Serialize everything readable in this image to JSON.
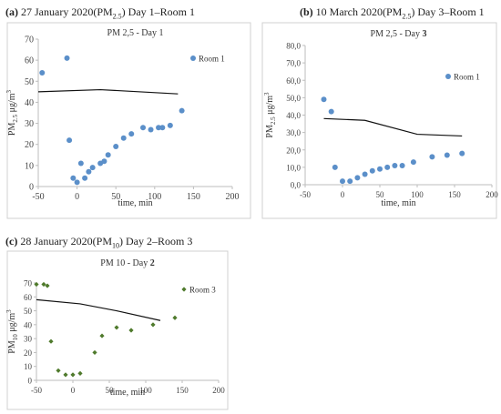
{
  "chart_data": [
    {
      "id": "a",
      "type": "scatter",
      "caption_letter": "(a)",
      "caption_text": " 27 January 2020(PM",
      "caption_sub": "2.5",
      "caption_tail": ") Day 1–Room 1",
      "title": "PM 2,5 - Day 1",
      "title_bold": "",
      "ylabel_main": "PM",
      "ylabel_sub": "2.5",
      "ylabel_unit": " μg/m",
      "ylabel_sup": "3",
      "xlabel": "time, min",
      "xlim": [
        -50,
        200
      ],
      "ylim": [
        0,
        70
      ],
      "xticks": [
        "-50",
        "0",
        "50",
        "100",
        "150",
        "200"
      ],
      "xtick_values": [
        -50,
        0,
        50,
        100,
        150,
        200
      ],
      "yticks": [
        "0",
        "10",
        "20",
        "30",
        "40",
        "50",
        "60",
        "70"
      ],
      "ytick_values": [
        0,
        10,
        20,
        30,
        40,
        50,
        60,
        70
      ],
      "grid": false,
      "legend": "top-right",
      "marker": "circle",
      "color": "#5b8fc9",
      "series": [
        {
          "name": "Room 1",
          "x": [
            -45,
            -13,
            -10,
            -5,
            0,
            5,
            10,
            15,
            20,
            30,
            35,
            40,
            50,
            60,
            70,
            85,
            95,
            105,
            110,
            120,
            135
          ],
          "y": [
            54,
            61,
            22,
            4,
            2,
            11,
            4,
            7,
            9,
            11,
            12,
            15,
            19,
            23,
            25,
            28,
            27,
            28,
            28,
            29,
            36
          ]
        }
      ],
      "line": {
        "x": [
          -50,
          30,
          130
        ],
        "y": [
          45,
          46,
          44
        ]
      }
    },
    {
      "id": "b",
      "type": "scatter",
      "caption_letter": "(b)",
      "caption_text": " 10 March 2020(PM",
      "caption_sub": "2.5",
      "caption_tail": ") Day 3–Room 1",
      "title": "PM 2,5 - Day ",
      "title_bold": "3",
      "ylabel_main": "PM",
      "ylabel_sub": "2.5",
      "ylabel_unit": " μg/m",
      "ylabel_sup": "3",
      "xlabel": "time, min",
      "xlim": [
        -50,
        200
      ],
      "ylim": [
        0,
        80
      ],
      "xticks": [
        "-50",
        "0",
        "50",
        "100",
        "150",
        "200"
      ],
      "xtick_values": [
        -50,
        0,
        50,
        100,
        150,
        200
      ],
      "yticks": [
        "0,0",
        "10,0",
        "20,0",
        "30,0",
        "40,0",
        "50,0",
        "60,0",
        "70,0",
        "80,0"
      ],
      "ytick_values": [
        0,
        10,
        20,
        30,
        40,
        50,
        60,
        70,
        80
      ],
      "grid": false,
      "legend": "top-right",
      "marker": "circle",
      "color": "#5b8fc9",
      "series": [
        {
          "name": "Room 1",
          "x": [
            -25,
            -15,
            -10,
            0,
            10,
            20,
            30,
            40,
            50,
            60,
            70,
            80,
            95,
            120,
            140,
            160
          ],
          "y": [
            49,
            42,
            10,
            2,
            2,
            4,
            6,
            8,
            9,
            10,
            11,
            11,
            13,
            16,
            17,
            18
          ]
        }
      ],
      "line": {
        "x": [
          -25,
          30,
          100,
          160
        ],
        "y": [
          38,
          37,
          29,
          28
        ]
      }
    },
    {
      "id": "c",
      "type": "scatter",
      "caption_letter": "(c)",
      "caption_text": " 28 January 2020(PM",
      "caption_sub": "10",
      "caption_tail": ") Day 2–Room 3",
      "title": "PM 10 - Day ",
      "title_bold": "2",
      "ylabel_main": "PM",
      "ylabel_sub": "10",
      "ylabel_unit": " μg/m",
      "ylabel_sup": "3",
      "xlabel": "time, min",
      "xlim": [
        -50,
        200
      ],
      "ylim": [
        0,
        70
      ],
      "xticks": [
        "-50",
        "0",
        "50",
        "100",
        "150",
        "200"
      ],
      "xtick_values": [
        -50,
        0,
        50,
        100,
        150,
        200
      ],
      "yticks": [
        "0",
        "10",
        "20",
        "30",
        "40",
        "50",
        "60",
        "70"
      ],
      "ytick_values": [
        0,
        10,
        20,
        30,
        40,
        50,
        60,
        70
      ],
      "grid": false,
      "legend": "top-right",
      "marker": "diamond",
      "color": "#4f7a2c",
      "series": [
        {
          "name": "Room 3",
          "x": [
            -50,
            -40,
            -35,
            -30,
            -20,
            -10,
            0,
            10,
            30,
            40,
            60,
            80,
            110,
            140
          ],
          "y": [
            69,
            69,
            68,
            28,
            7,
            4,
            4,
            5,
            20,
            32,
            38,
            36,
            40,
            45
          ]
        }
      ],
      "line": {
        "x": [
          -50,
          10,
          60,
          120
        ],
        "y": [
          58,
          55,
          50,
          43
        ]
      }
    }
  ]
}
